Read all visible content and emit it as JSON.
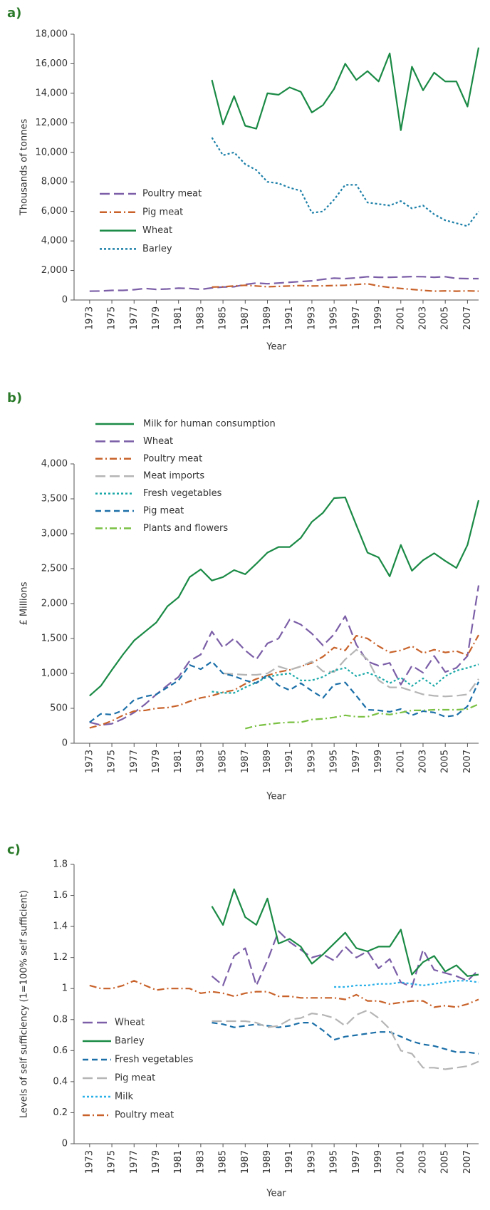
{
  "chart_data": [
    {
      "type": "line",
      "label": "a)",
      "y_label": "Thousands of tonnes",
      "x_label": "Year",
      "x": [
        1973,
        1974,
        1975,
        1976,
        1977,
        1978,
        1979,
        1980,
        1981,
        1982,
        1983,
        1984,
        1985,
        1986,
        1987,
        1988,
        1989,
        1990,
        1991,
        1992,
        1993,
        1994,
        1995,
        1996,
        1997,
        1998,
        1999,
        2000,
        2001,
        2002,
        2003,
        2004,
        2005,
        2006,
        2007,
        2008
      ],
      "xlim": [
        1971.6,
        2008
      ],
      "xticks": [
        1973,
        1975,
        1977,
        1979,
        1981,
        1983,
        1985,
        1987,
        1989,
        1991,
        1993,
        1995,
        1997,
        1999,
        2001,
        2003,
        2005,
        2007
      ],
      "ylim": [
        0,
        18000
      ],
      "yticks": [
        0,
        {
          "value": 2000,
          "label": "2,000"
        },
        {
          "value": 4000,
          "label": "4,000"
        },
        {
          "value": 6000,
          "label": "6,000"
        },
        {
          "value": 8000,
          "label": "8,000"
        },
        {
          "value": 10000,
          "label": "10,000"
        },
        {
          "value": 12000,
          "label": "12,000"
        },
        {
          "value": 14000,
          "label": "14,000"
        },
        {
          "value": 16000,
          "label": "16,000"
        },
        {
          "value": 18000,
          "label": "18,000"
        }
      ],
      "series": [
        {
          "name": "Poultry meat",
          "color": "#7b5ea7",
          "style": "dashed",
          "values": [
            600,
            610,
            650,
            650,
            700,
            780,
            720,
            750,
            800,
            780,
            720,
            820,
            880,
            900,
            1050,
            1150,
            1100,
            1150,
            1200,
            1250,
            1300,
            1400,
            1480,
            1450,
            1500,
            1580,
            1540,
            1540,
            1560,
            1590,
            1580,
            1540,
            1580,
            1460,
            1450,
            1450
          ]
        },
        {
          "name": "Pig meat",
          "color": "#c8622a",
          "style": "dashdot",
          "values": [
            null,
            null,
            null,
            null,
            null,
            null,
            null,
            null,
            null,
            null,
            null,
            880,
            900,
            950,
            1000,
            950,
            900,
            920,
            950,
            980,
            950,
            960,
            980,
            1000,
            1050,
            1100,
            950,
            850,
            780,
            720,
            650,
            600,
            620,
            600,
            620,
            600
          ]
        },
        {
          "name": "Wheat",
          "color": "#1a8a45",
          "style": "solid",
          "values": [
            null,
            null,
            null,
            null,
            null,
            null,
            null,
            null,
            null,
            null,
            null,
            14900,
            11900,
            13800,
            11800,
            11600,
            14000,
            13900,
            14400,
            14100,
            12700,
            13200,
            14300,
            16000,
            14900,
            15500,
            14800,
            16700,
            11500,
            15800,
            14200,
            15400,
            14800,
            14800,
            13100,
            17100
          ]
        },
        {
          "name": "Barley",
          "color": "#1b7fa8",
          "style": "dotted",
          "values": [
            null,
            null,
            null,
            null,
            null,
            null,
            null,
            null,
            null,
            null,
            null,
            11000,
            9800,
            10000,
            9200,
            8800,
            8000,
            7900,
            7600,
            7400,
            5900,
            6000,
            6800,
            7800,
            7800,
            6600,
            6500,
            6400,
            6700,
            6200,
            6400,
            5800,
            5400,
            5200,
            5000,
            6000
          ]
        }
      ]
    },
    {
      "type": "line",
      "label": "b)",
      "y_label": "£ Millions",
      "x_label": "Year",
      "x": [
        1973,
        1974,
        1975,
        1976,
        1977,
        1978,
        1979,
        1980,
        1981,
        1982,
        1983,
        1984,
        1985,
        1986,
        1987,
        1988,
        1989,
        1990,
        1991,
        1992,
        1993,
        1994,
        1995,
        1996,
        1997,
        1998,
        1999,
        2000,
        2001,
        2002,
        2003,
        2004,
        2005,
        2006,
        2007,
        2008
      ],
      "xlim": [
        1971.6,
        2008
      ],
      "xticks": [
        1973,
        1975,
        1977,
        1979,
        1981,
        1983,
        1985,
        1987,
        1989,
        1991,
        1993,
        1995,
        1997,
        1999,
        2001,
        2003,
        2005,
        2007
      ],
      "ylim": [
        0,
        4000
      ],
      "yticks": [
        0,
        500,
        {
          "value": 1000,
          "label": "1,000"
        },
        {
          "value": 1500,
          "label": "1,500"
        },
        {
          "value": 2000,
          "label": "2,000"
        },
        {
          "value": 2500,
          "label": "2,500"
        },
        {
          "value": 3000,
          "label": "3,000"
        },
        {
          "value": 3500,
          "label": "3,500"
        },
        {
          "value": 4000,
          "label": "4,000"
        }
      ],
      "series": [
        {
          "name": "Milk for human consumption",
          "color": "#1a8a45",
          "style": "solid",
          "values": [
            680,
            820,
            1050,
            1270,
            1470,
            1600,
            1730,
            1960,
            2090,
            2380,
            2490,
            2330,
            2380,
            2480,
            2420,
            2570,
            2730,
            2810,
            2810,
            2940,
            3170,
            3300,
            3510,
            3520,
            3120,
            2730,
            2660,
            2390,
            2840,
            2470,
            2620,
            2720,
            2610,
            2510,
            2840,
            3480
          ]
        },
        {
          "name": "Wheat",
          "color": "#7b5ea7",
          "style": "dashed",
          "values": [
            300,
            260,
            280,
            350,
            440,
            560,
            700,
            830,
            950,
            1180,
            1270,
            1600,
            1370,
            1500,
            1330,
            1200,
            1430,
            1500,
            1770,
            1700,
            1570,
            1400,
            1560,
            1820,
            1410,
            1170,
            1110,
            1150,
            840,
            1110,
            1010,
            1250,
            1020,
            1080,
            1250,
            2260
          ]
        },
        {
          "name": "Poultry meat",
          "color": "#c8622a",
          "style": "dashdot",
          "values": [
            220,
            260,
            320,
            400,
            460,
            470,
            500,
            510,
            540,
            600,
            650,
            680,
            730,
            760,
            850,
            920,
            970,
            1020,
            1050,
            1100,
            1150,
            1240,
            1370,
            1330,
            1540,
            1500,
            1390,
            1300,
            1330,
            1390,
            1290,
            1340,
            1300,
            1320,
            1260,
            1550
          ]
        },
        {
          "name": "Meat imports",
          "color": "#b5b5b5",
          "style": "dashed",
          "values": [
            null,
            null,
            null,
            null,
            null,
            null,
            null,
            null,
            null,
            null,
            null,
            null,
            1000,
            990,
            980,
            980,
            1000,
            1100,
            1050,
            1100,
            1170,
            1030,
            1020,
            1200,
            1340,
            1200,
            900,
            800,
            800,
            750,
            700,
            680,
            670,
            680,
            700,
            920
          ]
        },
        {
          "name": "Fresh vegetables",
          "color": "#1aa8a8",
          "style": "dotted",
          "values": [
            null,
            null,
            null,
            null,
            null,
            null,
            null,
            null,
            null,
            null,
            null,
            740,
            720,
            720,
            800,
            870,
            950,
            980,
            1000,
            900,
            900,
            950,
            1040,
            1080,
            960,
            1010,
            950,
            860,
            940,
            820,
            930,
            820,
            960,
            1040,
            1080,
            1130
          ]
        },
        {
          "name": "Pig meat",
          "color": "#1b6fa8",
          "style": "shortdash",
          "values": [
            300,
            420,
            410,
            470,
            620,
            670,
            700,
            800,
            900,
            1120,
            1060,
            1170,
            1000,
            960,
            900,
            860,
            980,
            830,
            760,
            860,
            750,
            650,
            840,
            870,
            680,
            480,
            470,
            450,
            490,
            400,
            460,
            440,
            380,
            400,
            530,
            880
          ]
        },
        {
          "name": "Plants and flowers",
          "color": "#7ac143",
          "style": "dashdot",
          "values": [
            null,
            null,
            null,
            null,
            null,
            null,
            null,
            null,
            null,
            null,
            null,
            null,
            null,
            null,
            210,
            250,
            270,
            290,
            300,
            300,
            340,
            350,
            370,
            400,
            380,
            380,
            430,
            410,
            440,
            470,
            470,
            480,
            480,
            480,
            490,
            560
          ]
        }
      ]
    },
    {
      "type": "line",
      "label": "c)",
      "y_label": "Levels of self sufficiency (1=100% self sufficient)",
      "x_label": "Year",
      "x": [
        1973,
        1974,
        1975,
        1976,
        1977,
        1978,
        1979,
        1980,
        1981,
        1982,
        1983,
        1984,
        1985,
        1986,
        1987,
        1988,
        1989,
        1990,
        1991,
        1992,
        1993,
        1994,
        1995,
        1996,
        1997,
        1998,
        1999,
        2000,
        2001,
        2002,
        2003,
        2004,
        2005,
        2006,
        2007,
        2008
      ],
      "xlim": [
        1971.6,
        2008
      ],
      "xticks": [
        1973,
        1975,
        1977,
        1979,
        1981,
        1983,
        1985,
        1987,
        1989,
        1991,
        1993,
        1995,
        1997,
        1999,
        2001,
        2003,
        2005,
        2007
      ],
      "ylim": [
        0,
        1.8
      ],
      "yticks": [
        0,
        0.2,
        0.4,
        0.6,
        0.8,
        1,
        1.2,
        1.4,
        1.6,
        1.8
      ],
      "series": [
        {
          "name": "Wheat",
          "color": "#7b5ea7",
          "style": "dashed",
          "values": [
            null,
            null,
            null,
            null,
            null,
            null,
            null,
            null,
            null,
            null,
            null,
            1.08,
            1.02,
            1.21,
            1.26,
            1.02,
            1.18,
            1.37,
            1.3,
            1.25,
            1.2,
            1.22,
            1.18,
            1.27,
            1.2,
            1.24,
            1.13,
            1.19,
            1.04,
            1.01,
            1.25,
            1.12,
            1.1,
            1.08,
            1.05,
            1.12
          ]
        },
        {
          "name": "Barley",
          "color": "#1a8a45",
          "style": "solid",
          "values": [
            null,
            null,
            null,
            null,
            null,
            null,
            null,
            null,
            null,
            null,
            null,
            1.53,
            1.41,
            1.64,
            1.46,
            1.41,
            1.58,
            1.29,
            1.32,
            1.27,
            1.16,
            1.22,
            1.29,
            1.36,
            1.26,
            1.24,
            1.27,
            1.27,
            1.38,
            1.09,
            1.17,
            1.21,
            1.11,
            1.15,
            1.08,
            1.09
          ]
        },
        {
          "name": "Fresh vegetables",
          "color": "#1b6fa8",
          "style": "shortdash",
          "values": [
            null,
            null,
            null,
            null,
            null,
            null,
            null,
            null,
            null,
            null,
            null,
            0.78,
            0.77,
            0.75,
            0.76,
            0.77,
            0.76,
            0.75,
            0.76,
            0.78,
            0.78,
            0.73,
            0.67,
            0.69,
            0.7,
            0.71,
            0.72,
            0.72,
            0.69,
            0.66,
            0.64,
            0.63,
            0.61,
            0.59,
            0.59,
            0.58
          ]
        },
        {
          "name": "Pig meat",
          "color": "#b5b5b5",
          "style": "dashed",
          "values": [
            null,
            null,
            null,
            null,
            null,
            null,
            null,
            null,
            null,
            null,
            null,
            0.79,
            0.79,
            0.79,
            0.79,
            0.78,
            0.75,
            0.76,
            0.8,
            0.81,
            0.84,
            0.83,
            0.81,
            0.76,
            0.83,
            0.86,
            0.81,
            0.74,
            0.6,
            0.58,
            0.49,
            0.49,
            0.48,
            0.49,
            0.5,
            0.53
          ]
        },
        {
          "name": "Milk",
          "color": "#2ab0e8",
          "style": "dotted",
          "values": [
            null,
            null,
            null,
            null,
            null,
            null,
            null,
            null,
            null,
            null,
            null,
            null,
            null,
            null,
            null,
            null,
            null,
            null,
            null,
            null,
            null,
            null,
            1.01,
            1.01,
            1.02,
            1.02,
            1.03,
            1.03,
            1.04,
            1.03,
            1.02,
            1.03,
            1.04,
            1.05,
            1.05,
            1.04
          ]
        },
        {
          "name": "Poultry meat",
          "color": "#c8622a",
          "style": "dashdot",
          "values": [
            1.02,
            1.0,
            1.0,
            1.02,
            1.05,
            1.02,
            0.99,
            1.0,
            1.0,
            1.0,
            0.97,
            0.98,
            0.97,
            0.95,
            0.97,
            0.98,
            0.98,
            0.95,
            0.95,
            0.94,
            0.94,
            0.94,
            0.94,
            0.93,
            0.96,
            0.92,
            0.92,
            0.9,
            0.91,
            0.92,
            0.92,
            0.88,
            0.89,
            0.88,
            0.9,
            0.93
          ]
        }
      ]
    }
  ]
}
